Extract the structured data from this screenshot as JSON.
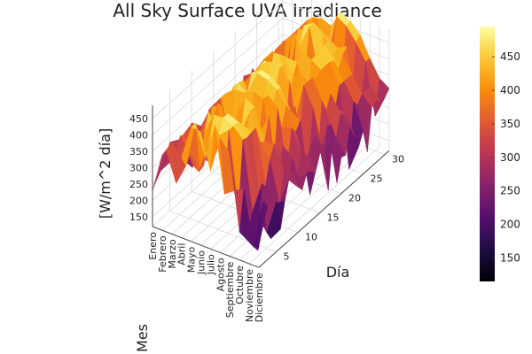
{
  "chart_data": {
    "type": "surface",
    "title": "All Sky Surface UVA Irradiance",
    "xlabel": "Mes",
    "ylabel": "Día",
    "zlabel": "[W/m^2 día]",
    "x_categories": [
      "Enero",
      "Febrero",
      "Marzo",
      "Abril",
      "Mayo",
      "Junio",
      "Julio",
      "Agosto",
      "Septiembre",
      "Octubre",
      "Noviembre",
      "Diciembre"
    ],
    "y_ticks": [
      5,
      10,
      15,
      20,
      25,
      30
    ],
    "y_range": [
      1,
      31
    ],
    "z_ticks": [
      150,
      200,
      250,
      300,
      350,
      400,
      450
    ],
    "z_range": [
      120,
      490
    ],
    "colorbar_ticks": [
      150,
      200,
      250,
      300,
      350,
      400,
      450
    ],
    "colorbar_range": [
      115,
      495
    ],
    "colormap": "inferno",
    "monthly_mean": [
      290,
      285,
      330,
      390,
      430,
      450,
      460,
      440,
      400,
      340,
      290,
      275
    ],
    "monthly_peak": [
      330,
      350,
      400,
      440,
      470,
      490,
      485,
      470,
      440,
      380,
      330,
      310
    ],
    "monthly_trough": [
      230,
      210,
      240,
      260,
      300,
      320,
      300,
      280,
      230,
      180,
      130,
      150
    ]
  }
}
